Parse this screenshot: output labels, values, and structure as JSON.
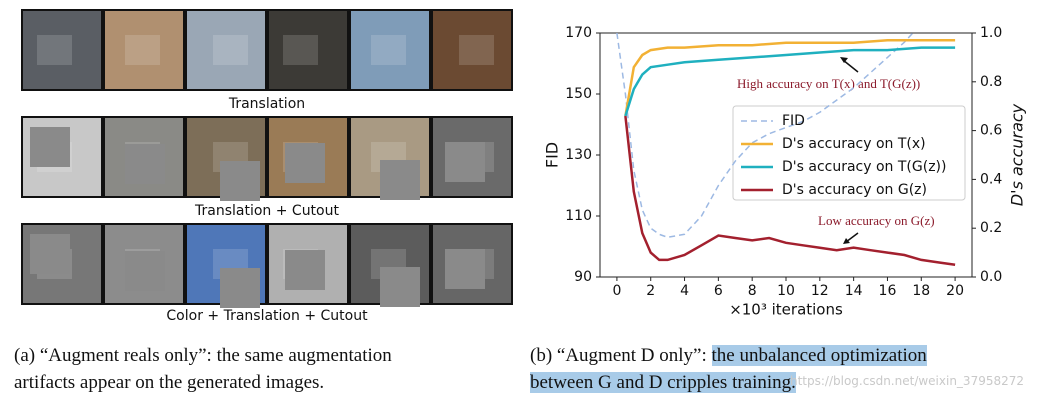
{
  "left_panel": {
    "row_labels": [
      "Translation",
      "Translation + Cutout",
      "Color + Translation + Cutout"
    ],
    "caption": [
      "(a) “Augment reals only”: the same augmentation",
      "artifacts appear on the generated images."
    ]
  },
  "chart_data": {
    "type": "line",
    "xlabel": "×10³ iterations",
    "ylabel": "FID",
    "y2label": "D's accuracy",
    "xlim": [
      -1,
      21
    ],
    "xticks": [
      0,
      2,
      4,
      6,
      8,
      10,
      12,
      14,
      16,
      18,
      20
    ],
    "ylim": [
      90,
      170
    ],
    "yticks": [
      90,
      110,
      130,
      150,
      170
    ],
    "y2lim": [
      0,
      1
    ],
    "y2ticks": [
      {
        "value": 0,
        "label": "0.0"
      },
      0.2,
      0.4,
      0.6,
      0.8,
      {
        "value": 1,
        "label": "1.0"
      }
    ],
    "legend": "upper right",
    "series": [
      {
        "name": "FID",
        "color": "#9db9e3",
        "dashed": true,
        "x": [
          0,
          0.5,
          1,
          1.5,
          2,
          2.5,
          3,
          4,
          5,
          6,
          7,
          8,
          9,
          10,
          11,
          12,
          13,
          14,
          15,
          16,
          17,
          17.5
        ],
        "values": [
          170,
          150,
          125,
          112,
          106,
          104,
          103,
          104,
          110,
          120,
          128,
          134,
          137,
          139,
          141,
          144,
          148,
          152,
          157,
          162,
          167,
          170
        ]
      },
      {
        "name": "D's accuracy on T(x)",
        "color": "#f2b134",
        "axis": "y2",
        "x": [
          0.5,
          1,
          1.5,
          2,
          3,
          4,
          6,
          8,
          10,
          12,
          14,
          16,
          18,
          20
        ],
        "values": [
          0.66,
          0.86,
          0.91,
          0.93,
          0.94,
          0.94,
          0.95,
          0.95,
          0.96,
          0.96,
          0.96,
          0.97,
          0.97,
          0.97
        ]
      },
      {
        "name": "D's accuracy on T(G(z))",
        "color": "#1fb0bf",
        "axis": "y2",
        "x": [
          0.5,
          1,
          1.5,
          2,
          3,
          4,
          6,
          8,
          10,
          12,
          14,
          16,
          18,
          20
        ],
        "values": [
          0.66,
          0.77,
          0.83,
          0.86,
          0.87,
          0.88,
          0.89,
          0.9,
          0.91,
          0.92,
          0.93,
          0.93,
          0.94,
          0.94
        ]
      },
      {
        "name": "D's accuracy on G(z)",
        "color": "#a3202e",
        "axis": "y2",
        "x": [
          0.5,
          1,
          1.5,
          2,
          2.5,
          3,
          4,
          5,
          6,
          7,
          8,
          9,
          10,
          11,
          12,
          13,
          14,
          15,
          16,
          17,
          18,
          19,
          20
        ],
        "values": [
          0.66,
          0.35,
          0.18,
          0.1,
          0.07,
          0.07,
          0.09,
          0.13,
          0.17,
          0.16,
          0.15,
          0.16,
          0.14,
          0.13,
          0.12,
          0.11,
          0.12,
          0.11,
          0.1,
          0.09,
          0.07,
          0.06,
          0.05
        ]
      }
    ],
    "annotations": [
      "High accuracy on T(x) and T(G(z))",
      "Low accuracy on G(z)"
    ]
  },
  "right_caption": {
    "prefix": "(b) “Augment D only”: ",
    "highlight": [
      "the unbalanced optimization",
      "between G and D cripples training."
    ]
  },
  "watermark": "https://blog.csdn.net/weixin_37958272"
}
